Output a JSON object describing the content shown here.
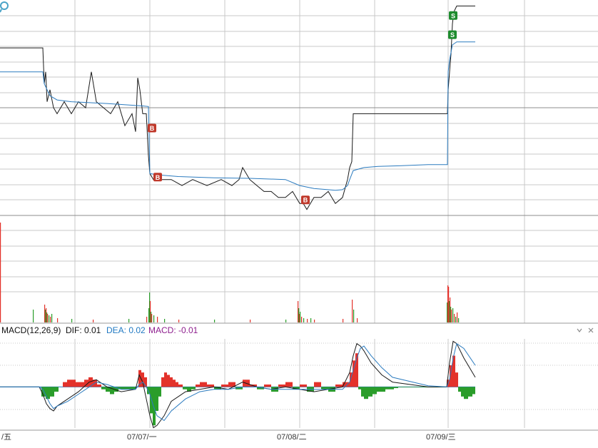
{
  "macd_header": {
    "name": "MACD(12,26,9)",
    "dif_label": "DIF: 0.01",
    "dea_label": "DEA: 0.02",
    "macd_label": "MACD: -0.01"
  },
  "header_controls": {
    "dropdown_icon": "chevron-down-icon",
    "close_icon": "close-icon"
  },
  "time_axis": {
    "labels": [
      "/五",
      "07/07/一",
      "07/08/二",
      "07/09/三"
    ]
  },
  "colors": {
    "price_line": "#1a1a1a",
    "avg_line": "#2b7bbf",
    "volume_up": "#e3322b",
    "volume_down": "#2a9d2a",
    "dif_line": "#1a1a1a",
    "dea_line": "#2b7bbf",
    "macd_pos": "#e3322b",
    "macd_neg": "#2a9d2a",
    "grid": "#c8c8c8",
    "buy_marker": "#c0392b",
    "sell_marker": "#1e8c2e",
    "dea_text": "#1f78c2",
    "macd_text": "#8e1e8e"
  },
  "chart_data": [
    {
      "type": "line",
      "panel": "intraday price",
      "series": [
        {
          "name": "price",
          "x": [
            0,
            60,
            62,
            64,
            66,
            70,
            75,
            80,
            90,
            100,
            110,
            120,
            128,
            135,
            145,
            155,
            165,
            175,
            185,
            190,
            193,
            196,
            200,
            205,
            208,
            210,
            215,
            225,
            240,
            255,
            270,
            290,
            310,
            325,
            335,
            340,
            345,
            350,
            360,
            370,
            380,
            390,
            400,
            410,
            420,
            425,
            430,
            440,
            450,
            460,
            470,
            480,
            487,
            490,
            493,
            495,
            530,
            580,
            627,
            628,
            630,
            632,
            634,
            636,
            640,
            650,
            666
          ],
          "y": [
            64,
            64,
            58,
            60,
            55,
            57,
            54,
            53,
            55,
            53,
            55,
            54,
            60,
            55,
            54,
            53,
            55,
            51,
            53,
            50,
            59,
            57,
            53,
            53,
            46,
            43,
            42,
            42,
            42,
            41,
            42,
            41,
            42,
            41,
            42,
            44,
            43,
            42,
            41,
            40,
            40,
            39,
            39,
            40,
            38,
            38,
            37,
            39,
            39,
            40,
            38,
            39,
            42,
            44,
            45,
            53,
            53,
            53,
            53,
            57,
            60,
            63,
            68,
            70,
            71,
            71,
            71
          ]
        },
        {
          "name": "average",
          "x": [
            0,
            60,
            62,
            66,
            70,
            80,
            100,
            150,
            200,
            208,
            210,
            220,
            250,
            300,
            350,
            400,
            420,
            440,
            470,
            480,
            487,
            490,
            495,
            510,
            530,
            560,
            600,
            627,
            628,
            630,
            634,
            640,
            650,
            666
          ],
          "y": [
            60,
            60,
            58,
            57,
            56,
            55.3,
            55,
            54.7,
            54.3,
            54.2,
            43,
            42.8,
            42.5,
            42.3,
            42.2,
            42,
            41,
            40.5,
            40.2,
            40.3,
            41,
            42,
            43.5,
            44,
            44.2,
            44.3,
            44.5,
            44.5,
            60,
            62,
            64.5,
            65,
            65,
            65
          ]
        }
      ],
      "x_range": [
        0,
        666
      ],
      "ylim": [
        36,
        72
      ],
      "markers": [
        {
          "label": "B",
          "x": 213,
          "y": 50.6
        },
        {
          "label": "B",
          "x": 221,
          "y": 42.4
        },
        {
          "label": "B",
          "x": 428,
          "y": 38.6
        },
        {
          "label": "S",
          "x": 635,
          "y": 69.4
        },
        {
          "label": "S",
          "x": 634,
          "y": 66.2
        }
      ]
    },
    {
      "type": "bar",
      "panel": "volume",
      "x": [
        0,
        46,
        62,
        63,
        64,
        65,
        66,
        68,
        70,
        72,
        80,
        100,
        130,
        180,
        205,
        208,
        209,
        210,
        211,
        212,
        215,
        220,
        230,
        250,
        300,
        350,
        400,
        417,
        418,
        419,
        420,
        422,
        425,
        430,
        435,
        440,
        480,
        493,
        495,
        500,
        626,
        627,
        628,
        629,
        630,
        631,
        632,
        634,
        636,
        638,
        640,
        642
      ],
      "values": [
        140,
        18,
        25,
        18,
        20,
        14,
        12,
        10,
        8,
        12,
        6,
        5,
        4,
        5,
        8,
        20,
        42,
        30,
        15,
        12,
        10,
        8,
        5,
        4,
        4,
        4,
        4,
        30,
        20,
        12,
        15,
        8,
        6,
        5,
        6,
        4,
        5,
        32,
        18,
        6,
        28,
        52,
        50,
        30,
        35,
        22,
        18,
        20,
        12,
        8,
        14,
        6
      ],
      "signs": [
        1,
        -1,
        1,
        -1,
        1,
        -1,
        1,
        -1,
        1,
        -1,
        1,
        -1,
        1,
        -1,
        1,
        -1,
        -1,
        1,
        -1,
        1,
        -1,
        1,
        -1,
        1,
        -1,
        1,
        -1,
        1,
        -1,
        1,
        -1,
        1,
        -1,
        1,
        -1,
        1,
        1,
        1,
        -1,
        1,
        -1,
        1,
        1,
        -1,
        1,
        -1,
        1,
        -1,
        1,
        -1,
        1,
        -1
      ],
      "x_range": [
        0,
        666
      ]
    },
    {
      "type": "line",
      "panel": "MACD",
      "series": [
        {
          "name": "DIF",
          "x": [
            0,
            55,
            60,
            65,
            70,
            75,
            80,
            95,
            110,
            125,
            135,
            150,
            170,
            190,
            195,
            200,
            205,
            210,
            215,
            220,
            230,
            240,
            260,
            280,
            300,
            320,
            340,
            360,
            380,
            400,
            420,
            440,
            460,
            480,
            490,
            495,
            500,
            505,
            510,
            520,
            535,
            550,
            600,
            626,
            630,
            635,
            640,
            650,
            666
          ],
          "y": [
            0,
            0,
            -0.3,
            -0.7,
            -0.9,
            -1.0,
            -0.8,
            -0.5,
            -0.2,
            0.2,
            0.3,
            0.0,
            -0.2,
            -0.1,
            0.5,
            0.2,
            -0.5,
            -1.2,
            -1.7,
            -1.6,
            -1.2,
            -0.6,
            -0.2,
            -0.1,
            0.0,
            -0.1,
            0.2,
            0.0,
            -0.1,
            0.0,
            -0.1,
            -0.2,
            -0.1,
            0.0,
            0.6,
            1.3,
            1.8,
            1.7,
            1.5,
            1.0,
            0.5,
            0.2,
            0.0,
            0.0,
            1.0,
            1.9,
            1.8,
            1.2,
            0.4
          ]
        },
        {
          "name": "DEA",
          "x": [
            0,
            55,
            60,
            65,
            70,
            75,
            80,
            95,
            110,
            125,
            135,
            150,
            170,
            190,
            195,
            200,
            205,
            210,
            215,
            220,
            230,
            240,
            260,
            280,
            300,
            320,
            340,
            360,
            380,
            400,
            420,
            440,
            460,
            480,
            490,
            495,
            500,
            505,
            510,
            520,
            535,
            550,
            600,
            626,
            630,
            635,
            640,
            650,
            666
          ],
          "y": [
            0,
            0,
            -0.1,
            -0.4,
            -0.7,
            -0.9,
            -0.8,
            -0.6,
            -0.3,
            0.0,
            0.2,
            0.1,
            -0.1,
            -0.1,
            0.1,
            0.2,
            0.0,
            -0.3,
            -0.8,
            -1.2,
            -1.4,
            -1.0,
            -0.5,
            -0.2,
            -0.1,
            -0.1,
            0.0,
            0.0,
            -0.1,
            -0.1,
            -0.1,
            -0.1,
            -0.1,
            -0.1,
            0.2,
            0.7,
            1.2,
            1.6,
            1.7,
            1.3,
            0.8,
            0.4,
            0.05,
            0.0,
            0.3,
            1.2,
            1.8,
            1.6,
            0.9
          ]
        }
      ],
      "histogram": {
        "x": [
          58,
          64,
          70,
          76,
          82,
          88,
          94,
          100,
          106,
          112,
          118,
          124,
          130,
          136,
          142,
          148,
          154,
          160,
          166,
          172,
          178,
          184,
          190,
          194,
          198,
          202,
          206,
          210,
          214,
          218,
          222,
          226,
          230,
          234,
          238,
          242,
          246,
          250,
          256,
          262,
          268,
          274,
          280,
          290,
          300,
          310,
          320,
          330,
          340,
          350,
          360,
          370,
          380,
          390,
          400,
          410,
          420,
          430,
          440,
          450,
          460,
          470,
          480,
          490,
          494,
          498,
          502,
          506,
          510,
          516,
          522,
          528,
          534,
          540,
          546,
          552,
          558,
          626,
          630,
          634,
          638,
          642,
          646,
          650,
          656,
          662
        ],
        "values": [
          -0.4,
          -0.5,
          -0.4,
          -0.2,
          0.0,
          0.2,
          0.3,
          0.3,
          0.2,
          0.2,
          0.3,
          0.4,
          0.3,
          0.1,
          -0.1,
          -0.2,
          -0.3,
          -0.2,
          -0.1,
          -0.1,
          -0.1,
          -0.1,
          0.0,
          0.7,
          0.6,
          0.4,
          -0.3,
          -1.1,
          -1.6,
          -1.0,
          -0.4,
          0.4,
          0.6,
          0.5,
          0.4,
          0.3,
          0.2,
          0.1,
          -0.1,
          -0.2,
          -0.1,
          0.1,
          0.2,
          0.1,
          -0.1,
          0.1,
          0.2,
          -0.1,
          0.3,
          0.1,
          -0.1,
          0.1,
          -0.2,
          0.1,
          0.2,
          -0.1,
          0.1,
          -0.2,
          0.2,
          -0.1,
          -0.2,
          0.1,
          0.2,
          0.6,
          1.1,
          1.4,
          -0.1,
          -0.4,
          -0.5,
          -0.4,
          -0.3,
          -0.2,
          -0.2,
          -0.1,
          -0.1,
          -0.05,
          -0.02,
          0.3,
          0.9,
          1.3,
          0.6,
          -0.2,
          -0.4,
          -0.5,
          -0.4,
          -0.3
        ]
      },
      "x_range": [
        0,
        666
      ],
      "ylim": [
        -1.8,
        2.0
      ]
    }
  ]
}
